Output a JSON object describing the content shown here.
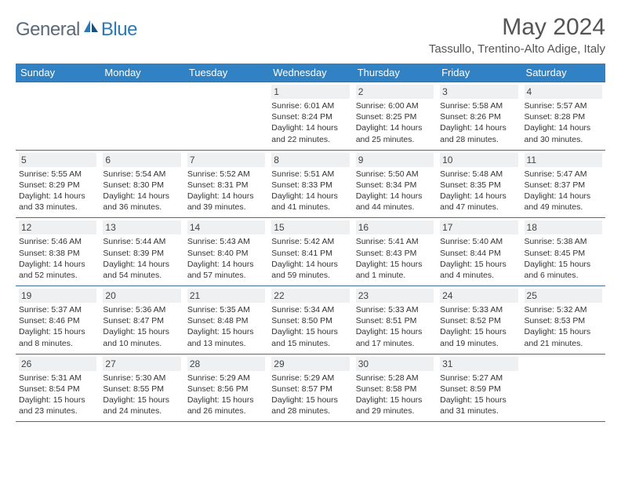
{
  "logo": {
    "part1": "General",
    "part2": "Blue"
  },
  "title": "May 2024",
  "location": "Tassullo, Trentino-Alto Adige, Italy",
  "colors": {
    "header_bg": "#3082c4",
    "header_text": "#ffffff",
    "rule": "#3b6f9c",
    "daynum_bg": "#eef0f2",
    "logo_gray": "#5a6a78",
    "logo_blue": "#2d79b5"
  },
  "daynames": [
    "Sunday",
    "Monday",
    "Tuesday",
    "Wednesday",
    "Thursday",
    "Friday",
    "Saturday"
  ],
  "weeks": [
    [
      null,
      null,
      null,
      {
        "n": "1",
        "sr": "6:01 AM",
        "ss": "8:24 PM",
        "dl": "14 hours and 22 minutes."
      },
      {
        "n": "2",
        "sr": "6:00 AM",
        "ss": "8:25 PM",
        "dl": "14 hours and 25 minutes."
      },
      {
        "n": "3",
        "sr": "5:58 AM",
        "ss": "8:26 PM",
        "dl": "14 hours and 28 minutes."
      },
      {
        "n": "4",
        "sr": "5:57 AM",
        "ss": "8:28 PM",
        "dl": "14 hours and 30 minutes."
      }
    ],
    [
      {
        "n": "5",
        "sr": "5:55 AM",
        "ss": "8:29 PM",
        "dl": "14 hours and 33 minutes."
      },
      {
        "n": "6",
        "sr": "5:54 AM",
        "ss": "8:30 PM",
        "dl": "14 hours and 36 minutes."
      },
      {
        "n": "7",
        "sr": "5:52 AM",
        "ss": "8:31 PM",
        "dl": "14 hours and 39 minutes."
      },
      {
        "n": "8",
        "sr": "5:51 AM",
        "ss": "8:33 PM",
        "dl": "14 hours and 41 minutes."
      },
      {
        "n": "9",
        "sr": "5:50 AM",
        "ss": "8:34 PM",
        "dl": "14 hours and 44 minutes."
      },
      {
        "n": "10",
        "sr": "5:48 AM",
        "ss": "8:35 PM",
        "dl": "14 hours and 47 minutes."
      },
      {
        "n": "11",
        "sr": "5:47 AM",
        "ss": "8:37 PM",
        "dl": "14 hours and 49 minutes."
      }
    ],
    [
      {
        "n": "12",
        "sr": "5:46 AM",
        "ss": "8:38 PM",
        "dl": "14 hours and 52 minutes."
      },
      {
        "n": "13",
        "sr": "5:44 AM",
        "ss": "8:39 PM",
        "dl": "14 hours and 54 minutes."
      },
      {
        "n": "14",
        "sr": "5:43 AM",
        "ss": "8:40 PM",
        "dl": "14 hours and 57 minutes."
      },
      {
        "n": "15",
        "sr": "5:42 AM",
        "ss": "8:41 PM",
        "dl": "14 hours and 59 minutes."
      },
      {
        "n": "16",
        "sr": "5:41 AM",
        "ss": "8:43 PM",
        "dl": "15 hours and 1 minute."
      },
      {
        "n": "17",
        "sr": "5:40 AM",
        "ss": "8:44 PM",
        "dl": "15 hours and 4 minutes."
      },
      {
        "n": "18",
        "sr": "5:38 AM",
        "ss": "8:45 PM",
        "dl": "15 hours and 6 minutes."
      }
    ],
    [
      {
        "n": "19",
        "sr": "5:37 AM",
        "ss": "8:46 PM",
        "dl": "15 hours and 8 minutes."
      },
      {
        "n": "20",
        "sr": "5:36 AM",
        "ss": "8:47 PM",
        "dl": "15 hours and 10 minutes."
      },
      {
        "n": "21",
        "sr": "5:35 AM",
        "ss": "8:48 PM",
        "dl": "15 hours and 13 minutes."
      },
      {
        "n": "22",
        "sr": "5:34 AM",
        "ss": "8:50 PM",
        "dl": "15 hours and 15 minutes."
      },
      {
        "n": "23",
        "sr": "5:33 AM",
        "ss": "8:51 PM",
        "dl": "15 hours and 17 minutes."
      },
      {
        "n": "24",
        "sr": "5:33 AM",
        "ss": "8:52 PM",
        "dl": "15 hours and 19 minutes."
      },
      {
        "n": "25",
        "sr": "5:32 AM",
        "ss": "8:53 PM",
        "dl": "15 hours and 21 minutes."
      }
    ],
    [
      {
        "n": "26",
        "sr": "5:31 AM",
        "ss": "8:54 PM",
        "dl": "15 hours and 23 minutes."
      },
      {
        "n": "27",
        "sr": "5:30 AM",
        "ss": "8:55 PM",
        "dl": "15 hours and 24 minutes."
      },
      {
        "n": "28",
        "sr": "5:29 AM",
        "ss": "8:56 PM",
        "dl": "15 hours and 26 minutes."
      },
      {
        "n": "29",
        "sr": "5:29 AM",
        "ss": "8:57 PM",
        "dl": "15 hours and 28 minutes."
      },
      {
        "n": "30",
        "sr": "5:28 AM",
        "ss": "8:58 PM",
        "dl": "15 hours and 29 minutes."
      },
      {
        "n": "31",
        "sr": "5:27 AM",
        "ss": "8:59 PM",
        "dl": "15 hours and 31 minutes."
      },
      null
    ]
  ],
  "labels": {
    "sunrise": "Sunrise:",
    "sunset": "Sunset:",
    "daylight": "Daylight:"
  }
}
